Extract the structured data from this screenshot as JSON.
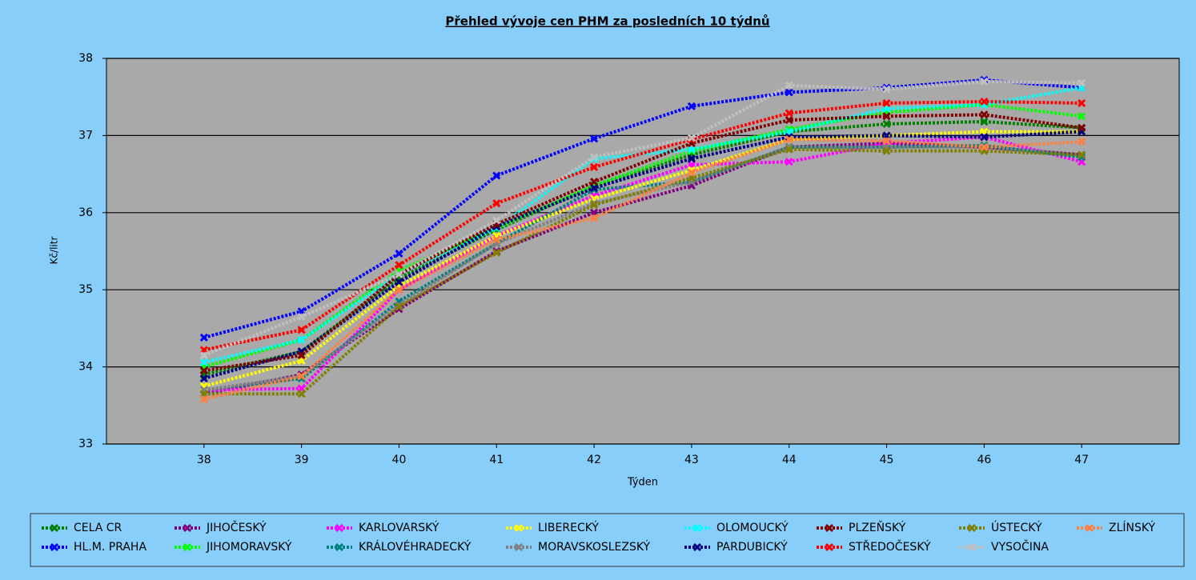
{
  "chart_data": {
    "type": "line",
    "title": "Přehled vývoje cen PHM za posledních 10 týdnů",
    "x_label": "Týden",
    "y_label": "Kč/litr",
    "categories": [
      "38",
      "39",
      "40",
      "41",
      "42",
      "43",
      "44",
      "45",
      "46",
      "47"
    ],
    "ylim": [
      33,
      38
    ],
    "yticks": [
      33,
      34,
      35,
      36,
      37,
      38
    ],
    "grid": true,
    "series": [
      {
        "name": "CELA CR",
        "color": "#008000",
        "values": [
          33.9,
          34.2,
          35.15,
          35.78,
          36.35,
          36.75,
          37.05,
          37.15,
          37.18,
          37.1
        ]
      },
      {
        "name": "HL.M. PRAHA",
        "color": "#0000ff",
        "values": [
          34.38,
          34.72,
          35.47,
          36.48,
          36.96,
          37.38,
          37.56,
          37.62,
          37.72,
          37.62
        ]
      },
      {
        "name": "JIHOČESKÝ",
        "color": "#800080",
        "values": [
          33.65,
          33.9,
          34.75,
          35.5,
          36.0,
          36.35,
          36.85,
          36.9,
          36.85,
          36.75
        ]
      },
      {
        "name": "JIHOMORAVSKÝ",
        "color": "#00ff00",
        "values": [
          34.0,
          34.35,
          35.25,
          35.8,
          36.35,
          36.8,
          37.08,
          37.3,
          37.4,
          37.25
        ]
      },
      {
        "name": "KARLOVARSKÝ",
        "color": "#ff00ff",
        "values": [
          33.7,
          33.72,
          35.0,
          35.7,
          36.22,
          36.62,
          36.66,
          36.9,
          36.98,
          36.66
        ]
      },
      {
        "name": "KRÁLOVÉHRADECKÝ",
        "color": "#008080",
        "values": [
          33.7,
          33.85,
          34.85,
          35.6,
          36.3,
          36.4,
          36.85,
          36.85,
          36.87,
          36.72
        ]
      },
      {
        "name": "LIBERECKÝ",
        "color": "#ffff00",
        "values": [
          33.75,
          34.08,
          35.05,
          35.7,
          36.18,
          36.55,
          36.95,
          37.0,
          37.05,
          37.05
        ]
      },
      {
        "name": "MORAVSKOSLEZSKÝ",
        "color": "#808080",
        "values": [
          33.7,
          33.88,
          34.8,
          35.6,
          36.12,
          36.4,
          36.85,
          36.85,
          36.85,
          36.75
        ]
      },
      {
        "name": "OLOMOUCKÝ",
        "color": "#00ffff",
        "values": [
          34.06,
          34.35,
          35.2,
          35.8,
          36.7,
          36.82,
          37.05,
          37.35,
          37.4,
          37.62
        ]
      },
      {
        "name": "PARDUBICKÝ",
        "color": "#000080",
        "values": [
          33.85,
          34.2,
          35.1,
          35.82,
          36.32,
          36.7,
          36.98,
          37.0,
          36.98,
          37.05
        ]
      },
      {
        "name": "PLZEŇSKÝ",
        "color": "#800000",
        "values": [
          33.95,
          34.15,
          35.2,
          35.85,
          36.4,
          36.9,
          37.2,
          37.25,
          37.27,
          37.1
        ]
      },
      {
        "name": "STŘEDOČESKÝ",
        "color": "#ff0000",
        "values": [
          34.22,
          34.48,
          35.32,
          36.12,
          36.59,
          36.95,
          37.29,
          37.42,
          37.44,
          37.42
        ]
      },
      {
        "name": "ÚSTECKÝ",
        "color": "#808000",
        "values": [
          33.65,
          33.65,
          34.78,
          35.48,
          36.1,
          36.45,
          36.82,
          36.8,
          36.8,
          36.75
        ]
      },
      {
        "name": "VYSOČINA",
        "color": "#c0c0c0",
        "values": [
          34.15,
          34.65,
          35.2,
          35.9,
          36.72,
          36.97,
          37.65,
          37.6,
          37.7,
          37.68
        ]
      },
      {
        "name": "ZLÍNSKÝ",
        "color": "#ff8040",
        "values": [
          33.58,
          33.88,
          35.0,
          35.65,
          35.93,
          36.52,
          36.95,
          36.93,
          36.85,
          36.92
        ]
      }
    ]
  }
}
